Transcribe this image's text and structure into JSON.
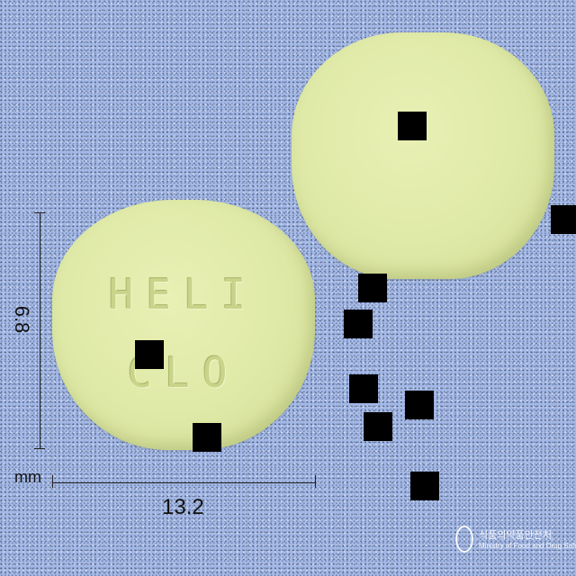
{
  "image": {
    "background_color": "#a3b9e8",
    "pill_color": "#dfe9a7"
  },
  "pill_front": {
    "imprint_line1": "HELI",
    "imprint_line2": "CLO"
  },
  "dimensions": {
    "height_value": "6.8",
    "width_value": "13.2",
    "unit": "mm"
  },
  "logo": {
    "icon": "agency-emblem-icon",
    "name_line": "식품의약품안전처",
    "english_line": "Ministry of Food and Drug Safety"
  }
}
